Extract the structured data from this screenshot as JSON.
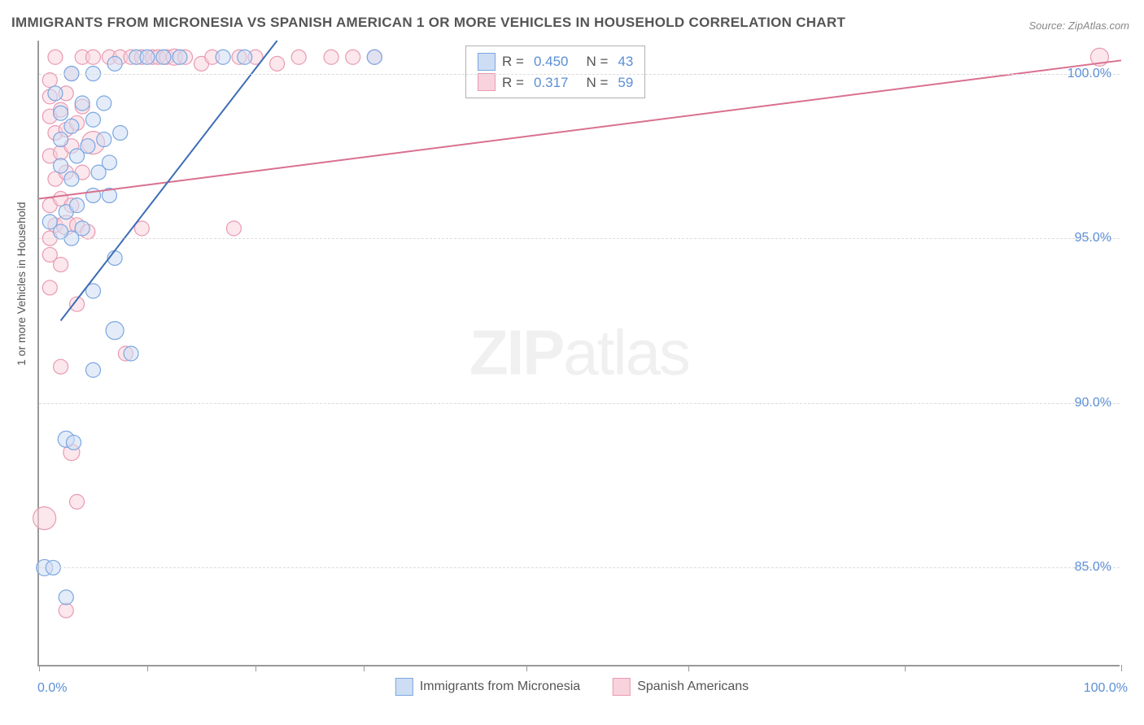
{
  "title": "IMMIGRANTS FROM MICRONESIA VS SPANISH AMERICAN 1 OR MORE VEHICLES IN HOUSEHOLD CORRELATION CHART",
  "source": "Source: ZipAtlas.com",
  "ylabel": "1 or more Vehicles in Household",
  "watermark_zip": "ZIP",
  "watermark_atlas": "atlas",
  "colors": {
    "blue_fill": "#cdddf4",
    "blue_stroke": "#7ba7e0",
    "pink_fill": "#f8d3dd",
    "pink_stroke": "#e99ab2",
    "blue_line": "#3d6db5",
    "pink_line": "#d9708f",
    "axis_label": "#5b8fd6"
  },
  "chart": {
    "type": "scatter",
    "xlim": [
      0,
      100
    ],
    "ylim": [
      82,
      101
    ],
    "yticks": [
      85.0,
      90.0,
      95.0,
      100.0
    ],
    "ytick_labels": [
      "85.0%",
      "90.0%",
      "95.0%",
      "100.0%"
    ],
    "xticks": [
      0,
      10,
      20,
      30,
      45,
      60,
      80,
      100
    ],
    "x_start_label": "0.0%",
    "x_end_label": "100.0%",
    "marker_default_r": 9,
    "fill_opacity": 0.55,
    "line_width": 2
  },
  "stats_box": {
    "series1": {
      "r_label": "R =",
      "r_value": "0.450",
      "n_label": "N =",
      "n_value": "43"
    },
    "series2": {
      "r_label": "R =",
      "r_value": "0.317",
      "n_label": "N =",
      "n_value": "59"
    }
  },
  "bottom_legend": {
    "series1": "Immigrants from Micronesia",
    "series2": "Spanish Americans"
  },
  "trend_lines": {
    "blue": {
      "x1": 2,
      "y1": 92.5,
      "x2": 22,
      "y2": 101
    },
    "pink": {
      "x1": 0,
      "y1": 96.2,
      "x2": 100,
      "y2": 100.4
    }
  },
  "points_blue": [
    {
      "x": 0.5,
      "y": 85.0,
      "r": 10
    },
    {
      "x": 1.3,
      "y": 85.0,
      "r": 9
    },
    {
      "x": 2.5,
      "y": 84.1,
      "r": 9
    },
    {
      "x": 2.5,
      "y": 88.9,
      "r": 10
    },
    {
      "x": 3.2,
      "y": 88.8,
      "r": 9
    },
    {
      "x": 5.0,
      "y": 91.0,
      "r": 9
    },
    {
      "x": 7.0,
      "y": 92.2,
      "r": 11
    },
    {
      "x": 5.0,
      "y": 93.4,
      "r": 9
    },
    {
      "x": 7.0,
      "y": 94.4,
      "r": 9
    },
    {
      "x": 3.0,
      "y": 95.0,
      "r": 9
    },
    {
      "x": 4.0,
      "y": 95.3,
      "r": 9
    },
    {
      "x": 2.0,
      "y": 95.2,
      "r": 9
    },
    {
      "x": 2.5,
      "y": 95.8,
      "r": 9
    },
    {
      "x": 3.5,
      "y": 96.0,
      "r": 9
    },
    {
      "x": 5.0,
      "y": 96.3,
      "r": 9
    },
    {
      "x": 6.5,
      "y": 96.3,
      "r": 9
    },
    {
      "x": 3.0,
      "y": 96.8,
      "r": 9
    },
    {
      "x": 5.5,
      "y": 97.0,
      "r": 9
    },
    {
      "x": 6.5,
      "y": 97.3,
      "r": 9
    },
    {
      "x": 2.0,
      "y": 97.2,
      "r": 9
    },
    {
      "x": 3.5,
      "y": 97.5,
      "r": 9
    },
    {
      "x": 4.5,
      "y": 97.8,
      "r": 9
    },
    {
      "x": 6.0,
      "y": 98.0,
      "r": 9
    },
    {
      "x": 7.5,
      "y": 98.2,
      "r": 9
    },
    {
      "x": 2.0,
      "y": 98.0,
      "r": 9
    },
    {
      "x": 3.0,
      "y": 98.4,
      "r": 9
    },
    {
      "x": 5.0,
      "y": 98.6,
      "r": 9
    },
    {
      "x": 2.0,
      "y": 98.8,
      "r": 9
    },
    {
      "x": 4.0,
      "y": 99.1,
      "r": 9
    },
    {
      "x": 6.0,
      "y": 99.1,
      "r": 9
    },
    {
      "x": 1.5,
      "y": 99.4,
      "r": 9
    },
    {
      "x": 3.0,
      "y": 100.0,
      "r": 9
    },
    {
      "x": 5.0,
      "y": 100.0,
      "r": 9
    },
    {
      "x": 7.0,
      "y": 100.3,
      "r": 9
    },
    {
      "x": 9.0,
      "y": 100.5,
      "r": 9
    },
    {
      "x": 10.0,
      "y": 100.5,
      "r": 9
    },
    {
      "x": 11.5,
      "y": 100.5,
      "r": 9
    },
    {
      "x": 13.0,
      "y": 100.5,
      "r": 9
    },
    {
      "x": 17.0,
      "y": 100.5,
      "r": 9
    },
    {
      "x": 19.0,
      "y": 100.5,
      "r": 9
    },
    {
      "x": 31.0,
      "y": 100.5,
      "r": 9
    },
    {
      "x": 1.0,
      "y": 95.5,
      "r": 9
    },
    {
      "x": 8.5,
      "y": 91.5,
      "r": 9
    }
  ],
  "points_pink": [
    {
      "x": 0.5,
      "y": 86.5,
      "r": 14
    },
    {
      "x": 3.5,
      "y": 87.0,
      "r": 9
    },
    {
      "x": 2.5,
      "y": 83.7,
      "r": 9
    },
    {
      "x": 3.0,
      "y": 88.5,
      "r": 10
    },
    {
      "x": 2.0,
      "y": 91.1,
      "r": 9
    },
    {
      "x": 8.0,
      "y": 91.5,
      "r": 9
    },
    {
      "x": 3.5,
      "y": 93.0,
      "r": 9
    },
    {
      "x": 1.0,
      "y": 93.5,
      "r": 9
    },
    {
      "x": 1.0,
      "y": 95.0,
      "r": 9
    },
    {
      "x": 1.5,
      "y": 95.4,
      "r": 9
    },
    {
      "x": 2.5,
      "y": 95.4,
      "r": 12
    },
    {
      "x": 3.5,
      "y": 95.4,
      "r": 9
    },
    {
      "x": 4.5,
      "y": 95.2,
      "r": 9
    },
    {
      "x": 9.5,
      "y": 95.3,
      "r": 9
    },
    {
      "x": 18.0,
      "y": 95.3,
      "r": 9
    },
    {
      "x": 1.0,
      "y": 96.0,
      "r": 9
    },
    {
      "x": 2.0,
      "y": 96.2,
      "r": 9
    },
    {
      "x": 3.0,
      "y": 96.0,
      "r": 9
    },
    {
      "x": 1.5,
      "y": 96.8,
      "r": 9
    },
    {
      "x": 2.5,
      "y": 97.0,
      "r": 9
    },
    {
      "x": 4.0,
      "y": 97.0,
      "r": 9
    },
    {
      "x": 1.0,
      "y": 97.5,
      "r": 9
    },
    {
      "x": 2.0,
      "y": 97.6,
      "r": 9
    },
    {
      "x": 3.0,
      "y": 97.8,
      "r": 9
    },
    {
      "x": 5.0,
      "y": 97.9,
      "r": 14
    },
    {
      "x": 1.5,
      "y": 98.2,
      "r": 9
    },
    {
      "x": 2.5,
      "y": 98.3,
      "r": 9
    },
    {
      "x": 3.5,
      "y": 98.5,
      "r": 9
    },
    {
      "x": 1.0,
      "y": 98.7,
      "r": 9
    },
    {
      "x": 2.0,
      "y": 98.9,
      "r": 9
    },
    {
      "x": 4.0,
      "y": 99.0,
      "r": 9
    },
    {
      "x": 1.0,
      "y": 99.3,
      "r": 9
    },
    {
      "x": 2.5,
      "y": 99.4,
      "r": 9
    },
    {
      "x": 1.0,
      "y": 99.8,
      "r": 9
    },
    {
      "x": 3.0,
      "y": 100.0,
      "r": 9
    },
    {
      "x": 4.0,
      "y": 100.5,
      "r": 9
    },
    {
      "x": 5.0,
      "y": 100.5,
      "r": 9
    },
    {
      "x": 1.5,
      "y": 100.5,
      "r": 9
    },
    {
      "x": 6.5,
      "y": 100.5,
      "r": 9
    },
    {
      "x": 7.5,
      "y": 100.5,
      "r": 9
    },
    {
      "x": 8.5,
      "y": 100.5,
      "r": 9
    },
    {
      "x": 9.5,
      "y": 100.5,
      "r": 9
    },
    {
      "x": 10.5,
      "y": 100.5,
      "r": 9
    },
    {
      "x": 11.0,
      "y": 100.5,
      "r": 9
    },
    {
      "x": 11.8,
      "y": 100.5,
      "r": 9
    },
    {
      "x": 12.5,
      "y": 100.5,
      "r": 10
    },
    {
      "x": 13.5,
      "y": 100.5,
      "r": 9
    },
    {
      "x": 15.0,
      "y": 100.3,
      "r": 9
    },
    {
      "x": 16.0,
      "y": 100.5,
      "r": 9
    },
    {
      "x": 18.5,
      "y": 100.5,
      "r": 9
    },
    {
      "x": 20.0,
      "y": 100.5,
      "r": 9
    },
    {
      "x": 22.0,
      "y": 100.3,
      "r": 9
    },
    {
      "x": 24.0,
      "y": 100.5,
      "r": 9
    },
    {
      "x": 27.0,
      "y": 100.5,
      "r": 9
    },
    {
      "x": 29.0,
      "y": 100.5,
      "r": 9
    },
    {
      "x": 31.0,
      "y": 100.5,
      "r": 9
    },
    {
      "x": 98.0,
      "y": 100.5,
      "r": 11
    },
    {
      "x": 1.0,
      "y": 94.5,
      "r": 9
    },
    {
      "x": 2.0,
      "y": 94.2,
      "r": 9
    }
  ]
}
